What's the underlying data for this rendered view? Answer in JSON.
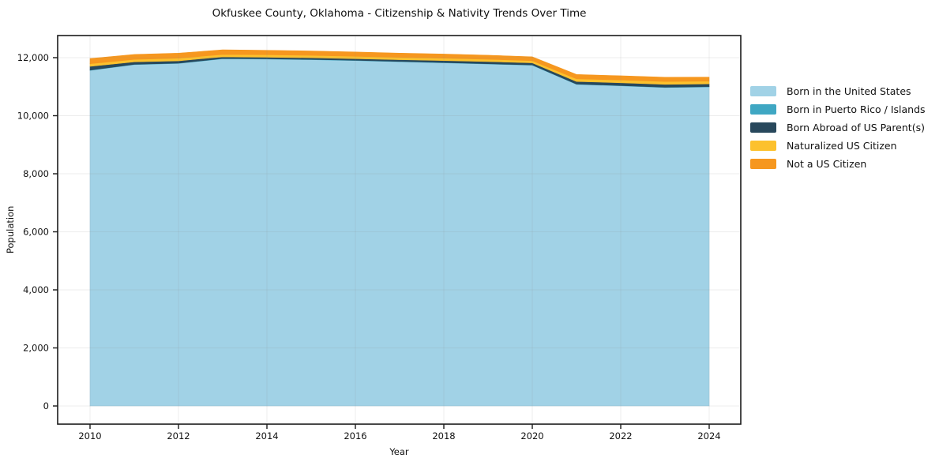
{
  "figure": {
    "title": "Okfuskee County, Oklahoma - Citizenship & Nativity Trends Over Time"
  },
  "chart_data": {
    "type": "area",
    "stacked": true,
    "title": "Okfuskee County, Oklahoma - Citizenship & Nativity Trends Over Time",
    "xlabel": "Year",
    "ylabel": "Population",
    "x": [
      2010,
      2011,
      2012,
      2013,
      2014,
      2015,
      2016,
      2017,
      2018,
      2019,
      2020,
      2021,
      2022,
      2023,
      2024
    ],
    "series": [
      {
        "name": "Born in the United States",
        "color": "#a1d2e6",
        "values": [
          11560,
          11760,
          11800,
          11960,
          11950,
          11930,
          11900,
          11860,
          11820,
          11780,
          11740,
          11080,
          11030,
          10970,
          10990
        ]
      },
      {
        "name": "Born in Puerto Rico / Islands",
        "color": "#3fa7c3",
        "values": [
          10,
          10,
          10,
          10,
          10,
          10,
          10,
          10,
          10,
          10,
          10,
          10,
          10,
          10,
          10
        ]
      },
      {
        "name": "Born Abroad of US Parent(s)",
        "color": "#28485c",
        "values": [
          130,
          85,
          80,
          60,
          55,
          55,
          55,
          60,
          70,
          75,
          70,
          90,
          95,
          100,
          95
        ]
      },
      {
        "name": "Naturalized US Citizen",
        "color": "#fcc12d",
        "values": [
          90,
          85,
          90,
          80,
          85,
          85,
          80,
          80,
          80,
          80,
          75,
          90,
          95,
          100,
          95
        ]
      },
      {
        "name": "Not a US Citizen",
        "color": "#f6971f",
        "values": [
          180,
          170,
          175,
          160,
          155,
          150,
          150,
          145,
          145,
          140,
          135,
          150,
          145,
          145,
          140
        ]
      }
    ],
    "xticks": [
      2010,
      2012,
      2014,
      2016,
      2018,
      2020,
      2022,
      2024
    ],
    "yticks": [
      0,
      2000,
      4000,
      6000,
      8000,
      10000,
      12000
    ],
    "ytick_labels": [
      "0",
      "2,000",
      "4,000",
      "6,000",
      "8,000",
      "10,000",
      "12,000"
    ],
    "ylim": [
      0,
      12000
    ],
    "grid": true,
    "legend_position": "right"
  }
}
